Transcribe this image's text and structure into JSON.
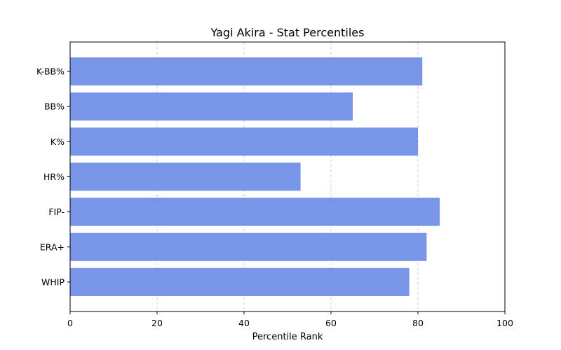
{
  "chart_data": {
    "type": "bar",
    "orientation": "horizontal",
    "title": "Yagi Akira - Stat Percentiles",
    "xlabel": "Percentile Rank",
    "ylabel": "",
    "categories": [
      "WHIP",
      "ERA+",
      "FIP-",
      "HR%",
      "K%",
      "BB%",
      "K-BB%"
    ],
    "values": [
      78,
      82,
      85,
      53,
      80,
      65,
      81
    ],
    "xlim": [
      0,
      100
    ],
    "xticks": [
      "0",
      "20",
      "40",
      "60",
      "80",
      "100"
    ],
    "grid": "x-axis dashed",
    "legend": "none",
    "bar_color": "#7895E8"
  }
}
